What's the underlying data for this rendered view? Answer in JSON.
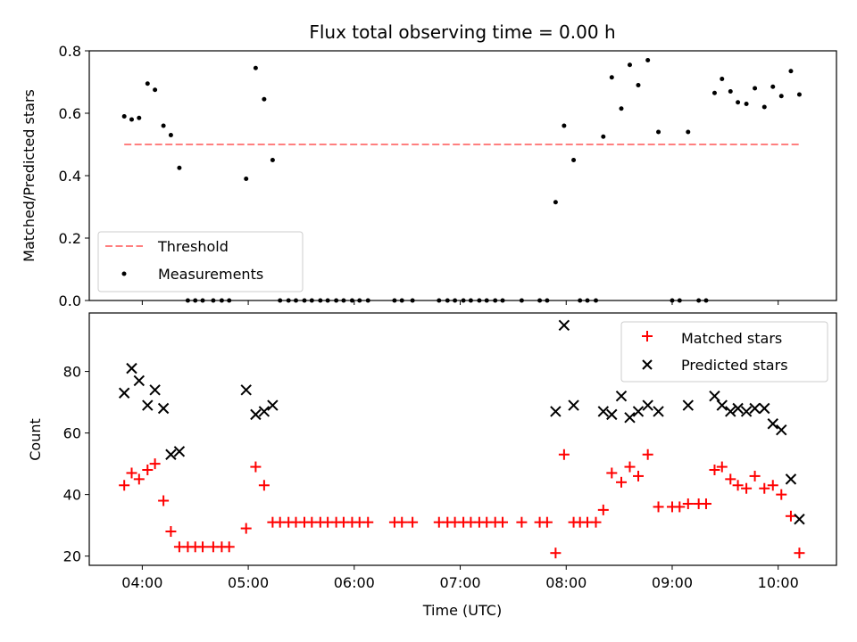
{
  "chart_data": [
    {
      "type": "scatter",
      "title": "Flux total observing time = 0.00 h",
      "ylabel": "Matched/Predicted stars",
      "xlabel": "",
      "xlim_hours": [
        3.5,
        10.55
      ],
      "ylim": [
        0,
        0.8
      ],
      "yticks": [
        0.0,
        0.2,
        0.4,
        0.6,
        0.8
      ],
      "ytick_labels": [
        "0.0",
        "0.2",
        "0.4",
        "0.6",
        "0.8"
      ],
      "grid": false,
      "legend_position": "lower-left",
      "threshold": {
        "name": "Threshold",
        "value": 0.5,
        "x_range_hours": [
          3.83,
          10.2
        ],
        "color": "#ff7f7f",
        "style": "dashed"
      },
      "series": [
        {
          "name": "Measurements",
          "color": "#000000",
          "marker": "dot",
          "points": [
            [
              3.83,
              0.59
            ],
            [
              3.9,
              0.58
            ],
            [
              3.97,
              0.585
            ],
            [
              4.05,
              0.695
            ],
            [
              4.12,
              0.675
            ],
            [
              4.2,
              0.56
            ],
            [
              4.27,
              0.53
            ],
            [
              4.35,
              0.425
            ],
            [
              4.43,
              0
            ],
            [
              4.5,
              0
            ],
            [
              4.57,
              0
            ],
            [
              4.67,
              0
            ],
            [
              4.75,
              0
            ],
            [
              4.82,
              0
            ],
            [
              4.98,
              0.39
            ],
            [
              5.07,
              0.745
            ],
            [
              5.15,
              0.645
            ],
            [
              5.23,
              0.45
            ],
            [
              5.3,
              0
            ],
            [
              5.38,
              0
            ],
            [
              5.45,
              0
            ],
            [
              5.53,
              0
            ],
            [
              5.6,
              0
            ],
            [
              5.68,
              0
            ],
            [
              5.75,
              0
            ],
            [
              5.83,
              0
            ],
            [
              5.9,
              0
            ],
            [
              5.98,
              0
            ],
            [
              6.05,
              0
            ],
            [
              6.13,
              0
            ],
            [
              6.38,
              0
            ],
            [
              6.45,
              0
            ],
            [
              6.55,
              0
            ],
            [
              6.8,
              0
            ],
            [
              6.88,
              0
            ],
            [
              6.95,
              0
            ],
            [
              7.03,
              0
            ],
            [
              7.1,
              0
            ],
            [
              7.18,
              0
            ],
            [
              7.25,
              0
            ],
            [
              7.33,
              0
            ],
            [
              7.4,
              0
            ],
            [
              7.58,
              0
            ],
            [
              7.75,
              0
            ],
            [
              7.82,
              0
            ],
            [
              7.9,
              0.315
            ],
            [
              7.98,
              0.56
            ],
            [
              8.07,
              0.45
            ],
            [
              8.13,
              0
            ],
            [
              8.2,
              0
            ],
            [
              8.28,
              0
            ],
            [
              8.35,
              0.525
            ],
            [
              8.43,
              0.715
            ],
            [
              8.52,
              0.615
            ],
            [
              8.6,
              0.755
            ],
            [
              8.68,
              0.69
            ],
            [
              8.77,
              0.77
            ],
            [
              8.87,
              0.54
            ],
            [
              9.0,
              0
            ],
            [
              9.07,
              0
            ],
            [
              9.15,
              0.54
            ],
            [
              9.25,
              0
            ],
            [
              9.32,
              0
            ],
            [
              9.4,
              0.665
            ],
            [
              9.47,
              0.71
            ],
            [
              9.55,
              0.67
            ],
            [
              9.62,
              0.635
            ],
            [
              9.7,
              0.63
            ],
            [
              9.78,
              0.68
            ],
            [
              9.87,
              0.62
            ],
            [
              9.95,
              0.685
            ],
            [
              10.03,
              0.655
            ],
            [
              10.12,
              0.735
            ],
            [
              10.2,
              0.66
            ]
          ]
        }
      ]
    },
    {
      "type": "scatter",
      "title": "",
      "xlabel": "Time (UTC)",
      "ylabel": "Count",
      "xlim_hours": [
        3.5,
        10.55
      ],
      "ylim": [
        17,
        99
      ],
      "yticks": [
        20,
        40,
        60,
        80
      ],
      "ytick_labels": [
        "20",
        "40",
        "60",
        "80"
      ],
      "xticks_hours": [
        4,
        5,
        6,
        7,
        8,
        9,
        10
      ],
      "xtick_labels": [
        "04:00",
        "05:00",
        "06:00",
        "07:00",
        "08:00",
        "09:00",
        "10:00"
      ],
      "grid": false,
      "legend_position": "upper-right",
      "series": [
        {
          "name": "Matched stars",
          "color": "#ff0000",
          "marker": "plus",
          "points": [
            [
              3.83,
              43
            ],
            [
              3.9,
              47
            ],
            [
              3.97,
              45
            ],
            [
              4.05,
              48
            ],
            [
              4.12,
              50
            ],
            [
              4.2,
              38
            ],
            [
              4.27,
              28
            ],
            [
              4.35,
              23
            ],
            [
              4.43,
              23
            ],
            [
              4.5,
              23
            ],
            [
              4.57,
              23
            ],
            [
              4.67,
              23
            ],
            [
              4.75,
              23
            ],
            [
              4.82,
              23
            ],
            [
              4.98,
              29
            ],
            [
              5.07,
              49
            ],
            [
              5.15,
              43
            ],
            [
              5.23,
              31
            ],
            [
              5.3,
              31
            ],
            [
              5.38,
              31
            ],
            [
              5.45,
              31
            ],
            [
              5.53,
              31
            ],
            [
              5.6,
              31
            ],
            [
              5.68,
              31
            ],
            [
              5.75,
              31
            ],
            [
              5.83,
              31
            ],
            [
              5.9,
              31
            ],
            [
              5.98,
              31
            ],
            [
              6.05,
              31
            ],
            [
              6.13,
              31
            ],
            [
              6.38,
              31
            ],
            [
              6.45,
              31
            ],
            [
              6.55,
              31
            ],
            [
              6.8,
              31
            ],
            [
              6.88,
              31
            ],
            [
              6.95,
              31
            ],
            [
              7.03,
              31
            ],
            [
              7.1,
              31
            ],
            [
              7.18,
              31
            ],
            [
              7.25,
              31
            ],
            [
              7.33,
              31
            ],
            [
              7.4,
              31
            ],
            [
              7.58,
              31
            ],
            [
              7.75,
              31
            ],
            [
              7.82,
              31
            ],
            [
              7.9,
              21
            ],
            [
              7.98,
              53
            ],
            [
              8.07,
              31
            ],
            [
              8.13,
              31
            ],
            [
              8.2,
              31
            ],
            [
              8.28,
              31
            ],
            [
              8.35,
              35
            ],
            [
              8.43,
              47
            ],
            [
              8.52,
              44
            ],
            [
              8.6,
              49
            ],
            [
              8.68,
              46
            ],
            [
              8.77,
              53
            ],
            [
              8.87,
              36
            ],
            [
              9.0,
              36
            ],
            [
              9.07,
              36
            ],
            [
              9.15,
              37
            ],
            [
              9.25,
              37
            ],
            [
              9.32,
              37
            ],
            [
              9.4,
              48
            ],
            [
              9.47,
              49
            ],
            [
              9.55,
              45
            ],
            [
              9.62,
              43
            ],
            [
              9.7,
              42
            ],
            [
              9.78,
              46
            ],
            [
              9.87,
              42
            ],
            [
              9.95,
              43
            ],
            [
              10.03,
              40
            ],
            [
              10.12,
              33
            ],
            [
              10.2,
              21
            ]
          ]
        },
        {
          "name": "Predicted stars",
          "color": "#000000",
          "marker": "x",
          "points": [
            [
              3.83,
              73
            ],
            [
              3.9,
              81
            ],
            [
              3.97,
              77
            ],
            [
              4.05,
              69
            ],
            [
              4.12,
              74
            ],
            [
              4.2,
              68
            ],
            [
              4.27,
              53
            ],
            [
              4.35,
              54
            ],
            [
              4.98,
              74
            ],
            [
              5.07,
              66
            ],
            [
              5.15,
              67
            ],
            [
              5.23,
              69
            ],
            [
              7.9,
              67
            ],
            [
              7.98,
              95
            ],
            [
              8.07,
              69
            ],
            [
              8.35,
              67
            ],
            [
              8.43,
              66
            ],
            [
              8.52,
              72
            ],
            [
              8.6,
              65
            ],
            [
              8.68,
              67
            ],
            [
              8.77,
              69
            ],
            [
              8.87,
              67
            ],
            [
              9.15,
              69
            ],
            [
              9.4,
              72
            ],
            [
              9.47,
              69
            ],
            [
              9.55,
              67
            ],
            [
              9.62,
              68
            ],
            [
              9.7,
              67
            ],
            [
              9.78,
              68
            ],
            [
              9.87,
              68
            ],
            [
              9.95,
              63
            ],
            [
              10.03,
              61
            ],
            [
              10.12,
              45
            ],
            [
              10.2,
              32
            ]
          ]
        }
      ]
    }
  ]
}
